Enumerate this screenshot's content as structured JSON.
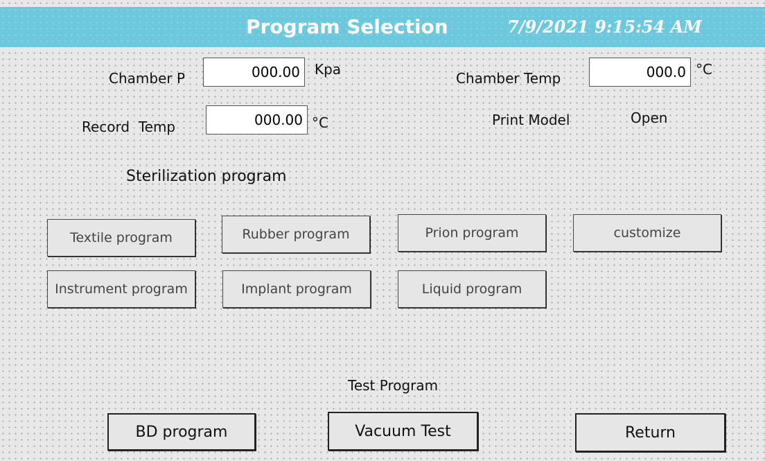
{
  "header": {
    "title": "Program Selection",
    "datetime": "7/9/2021 9:15:54 AM"
  },
  "fields": [
    {
      "label": "Chamber P",
      "value": "000.00",
      "unit": "Kpa"
    },
    {
      "label": "Chamber Temp",
      "value": "000.0",
      "unit": "°C"
    },
    {
      "label": "Record  Temp",
      "value": "000.00",
      "unit": "°C"
    },
    {
      "label": "Print Model",
      "value": "Open"
    }
  ],
  "sterilization": {
    "title": "Sterilization program",
    "buttons": [
      "Textile program",
      "Rubber program",
      "Prion  program",
      "customize",
      "Instrument program",
      "Implant program",
      "Liquid program"
    ]
  },
  "test": {
    "title": "Test Program",
    "buttons": [
      "BD program",
      "Vacuum Test",
      "Return"
    ]
  }
}
